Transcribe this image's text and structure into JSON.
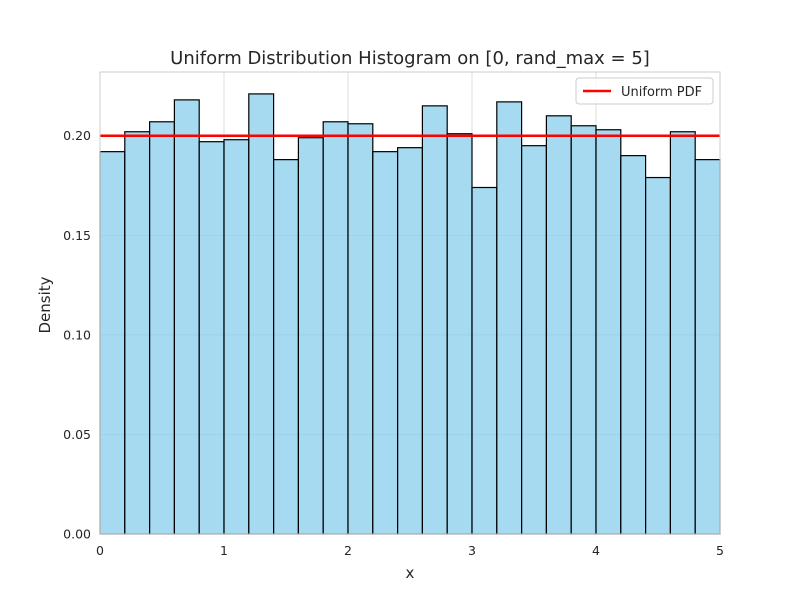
{
  "chart_data": {
    "type": "bar",
    "title": "Uniform Distribution Histogram on [0, rand_max = 5]",
    "xlabel": "x",
    "ylabel": "Density",
    "xlim": [
      0,
      5
    ],
    "ylim": [
      0,
      0.232
    ],
    "xticks": [
      0,
      1,
      2,
      3,
      4,
      5
    ],
    "xtick_labels": [
      "0",
      "1",
      "2",
      "3",
      "4",
      "5"
    ],
    "yticks": [
      0.0,
      0.05,
      0.1,
      0.15,
      0.2
    ],
    "ytick_labels": [
      "0.00",
      "0.05",
      "0.10",
      "0.15",
      "0.20"
    ],
    "grid": true,
    "legend": {
      "location": "upper-right",
      "entries": [
        {
          "label": "Uniform PDF",
          "color": "#ff0000",
          "kind": "line"
        }
      ]
    },
    "series": [
      {
        "type": "histogram",
        "color": "#87ceeb",
        "edge_color": "#000000",
        "bins": [
          0.0,
          0.2,
          0.4,
          0.6,
          0.8,
          1.0,
          1.2,
          1.4,
          1.6,
          1.8,
          2.0,
          2.2,
          2.4,
          2.6,
          2.8,
          3.0,
          3.2,
          3.4,
          3.6,
          3.8,
          4.0,
          4.2,
          4.4,
          4.6,
          4.8,
          5.0
        ],
        "values": [
          0.192,
          0.202,
          0.207,
          0.218,
          0.197,
          0.198,
          0.221,
          0.188,
          0.199,
          0.207,
          0.206,
          0.192,
          0.194,
          0.215,
          0.201,
          0.174,
          0.217,
          0.195,
          0.21,
          0.205,
          0.203,
          0.19,
          0.179,
          0.202,
          0.188
        ]
      },
      {
        "type": "line",
        "name": "Uniform PDF",
        "color": "#ff0000",
        "x": [
          0,
          5
        ],
        "y": [
          0.2,
          0.2
        ]
      }
    ]
  }
}
